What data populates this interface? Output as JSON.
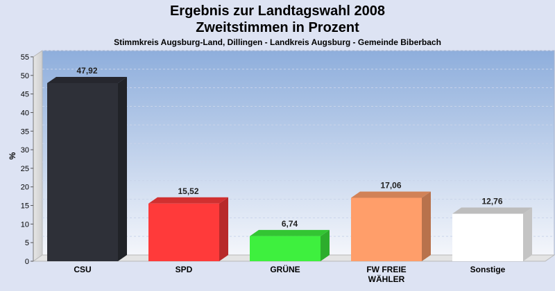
{
  "header": {
    "title_line1": "Ergebnis zur Landtagswahl 2008",
    "title_line2": "Zweitstimmen in Prozent",
    "subtitle": "Stimmkreis Augsburg-Land, Dillingen - Landkreis Augsburg - Gemeinde Biberbach"
  },
  "chart_data": {
    "type": "bar",
    "categories": [
      "CSU",
      "SPD",
      "GRÜNE",
      "FW FREIE WÄHLER",
      "Sonstige"
    ],
    "category_lines": [
      [
        "CSU"
      ],
      [
        "SPD"
      ],
      [
        "GRÜNE"
      ],
      [
        "FW FREIE",
        "WÄHLER"
      ],
      [
        "Sonstige"
      ]
    ],
    "values": [
      47.92,
      15.52,
      6.74,
      17.06,
      12.76
    ],
    "value_labels": [
      "47,92",
      "15,52",
      "6,74",
      "17,06",
      "12,76"
    ],
    "colors": [
      "#2e3038",
      "#ff3a3a",
      "#3ef03e",
      "#ff9e6a",
      "#ffffff"
    ],
    "ylabel": "%",
    "ylim": [
      0,
      55
    ],
    "yticks": [
      0,
      5,
      10,
      15,
      20,
      25,
      30,
      35,
      40,
      45,
      50,
      55
    ],
    "grid": true,
    "legend": "none"
  }
}
